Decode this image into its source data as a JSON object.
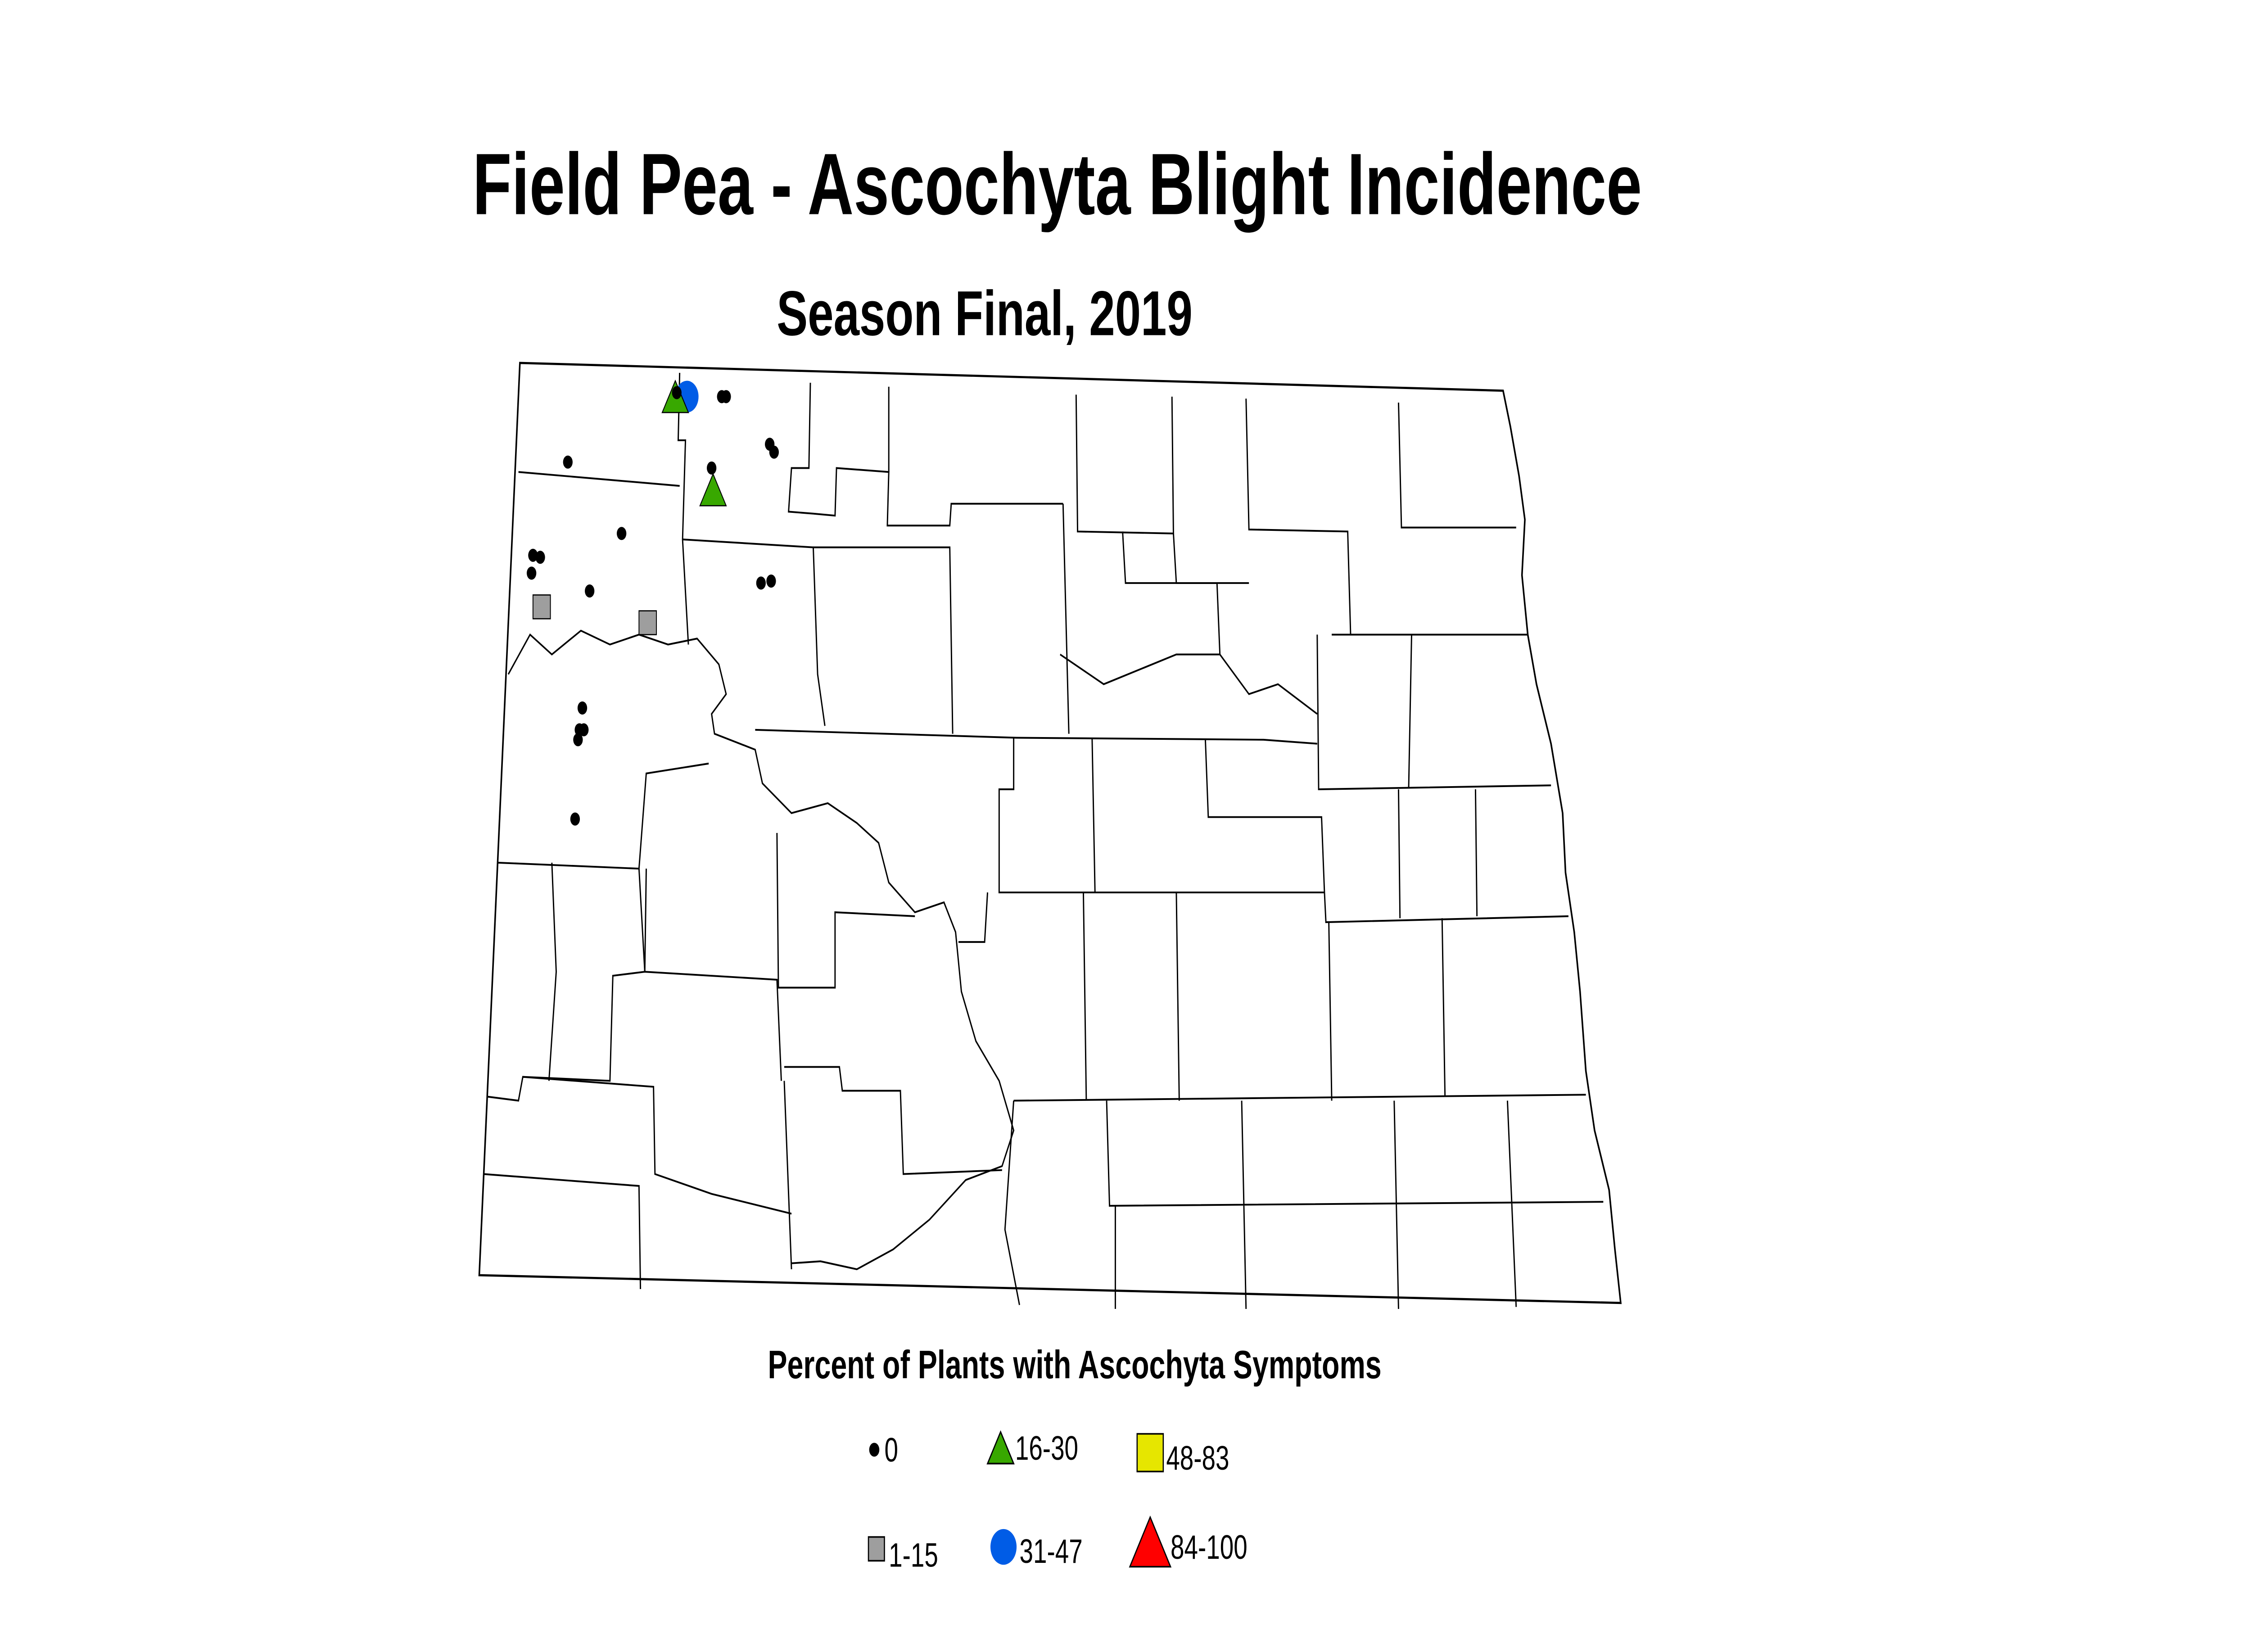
{
  "title": "Field Pea - Ascochyta Blight Incidence",
  "subtitle": "Season Final, 2019",
  "legend": {
    "title": "Percent of Plants with Ascochyta Symptoms",
    "items": [
      {
        "label": "0",
        "symbol": "small-dot",
        "color": "#000000"
      },
      {
        "label": "1-15",
        "symbol": "square",
        "color": "#9e9e9e"
      },
      {
        "label": "16-30",
        "symbol": "triangle",
        "color": "#38a800"
      },
      {
        "label": "31-47",
        "symbol": "circle",
        "color": "#005ce6"
      },
      {
        "label": "48-83",
        "symbol": "square",
        "color": "#e6e600"
      },
      {
        "label": "84-100",
        "symbol": "triangle",
        "color": "#ff0000"
      }
    ]
  }
}
